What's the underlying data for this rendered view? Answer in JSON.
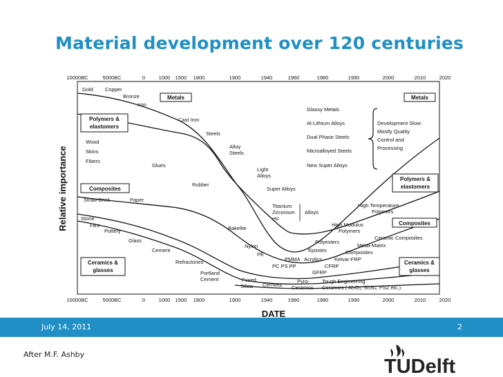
{
  "slide": {
    "title": "Material development over 120 centuries",
    "footer_date": "July 14, 2011",
    "page_number": "2",
    "credit": "After M.F. Ashby",
    "logo_text": "TUDelft"
  },
  "figure": {
    "x_axis_label": "DATE",
    "y_axis_label": "Relative importance",
    "dates": [
      "10000BC",
      "5000BC",
      "0",
      "1000",
      "1500",
      "1800",
      "1900",
      "1940",
      "1960",
      "1980",
      "1990",
      "2000",
      "2010",
      "2020"
    ],
    "boxes_left": [
      "Metals",
      "Polymers & elastomers",
      "Composites",
      "Ceramics & glasses"
    ],
    "boxes_right": [
      "Metals",
      "Polymers & elastomers",
      "Composites",
      "Ceramics & glasses"
    ],
    "labels": {
      "gold": "Gold",
      "copper": "Copper",
      "bronze": "Bronze",
      "iron": "Iron",
      "cast_iron": "Cast Iron",
      "steels": "Steels",
      "alloy_steels_1": "Alloy",
      "alloy_steels_2": "Steels",
      "light_alloys_1": "Light",
      "light_alloys_2": "Alloys",
      "super_alloys": "Super Alloys",
      "titanium": "Titanium",
      "zirconium": "Zirconium",
      "etc": "etc",
      "alloys": "Alloys",
      "glassy_metals": "Glassy Metals",
      "al_lithium": "Al-Lithium Alloys",
      "dual_phase": "Dual Phase Steels",
      "microalloyed": "Microalloyed Steels",
      "new_super": "New Super Alloys",
      "dev_slow": "Development Slow:",
      "mostly_quality": "Mostly Quality",
      "control_and": "Control and",
      "processing": "Processing",
      "wood": "Wood",
      "skins": "Skins",
      "fibers": "Fibers",
      "glues": "Glues",
      "rubber": "Rubber",
      "straw_brick": "Straw-Brick",
      "paper": "Paper",
      "stone": "Stone",
      "flint": "Flint",
      "pottery": "Pottery",
      "glass": "Glass",
      "cement": "Cement",
      "refractories": "Refractories",
      "portland_1": "Portland",
      "portland_2": "Cement",
      "bakelite": "Bakelite",
      "nylon": "Nylon",
      "pe": "PE",
      "pmma": "PMMA",
      "acrylics": "Acrylics",
      "pc_ps_pp": "PC  PS  PP",
      "epoxies": "Epoxies",
      "polyesters": "Polyesters",
      "cfrp": "CFRP",
      "gfrp": "GFRP",
      "kevlar_frp": "Kelvar-FRP",
      "metal_matrix": "Metal-Matrix",
      "mm_composites": "Composites",
      "ceramic_composites": "Ceramic Composites",
      "high_modulus": "High Modulus",
      "hm_polymers": "Polymers",
      "high_temp": "High Temperature",
      "ht_polymers": "Polymers",
      "fused_silica_1": "Fused",
      "fused_silica_2": "Silica",
      "cermets": "Cermets",
      "pyro_ceramics_1": "Pyro-",
      "pyro_ceramics_2": "Ceramics",
      "tough_eng": "Tough Engineering",
      "tough_eng_2": "Ceramics ( Al₂O₃, Si₃N₄, PSZ etc.)"
    }
  }
}
